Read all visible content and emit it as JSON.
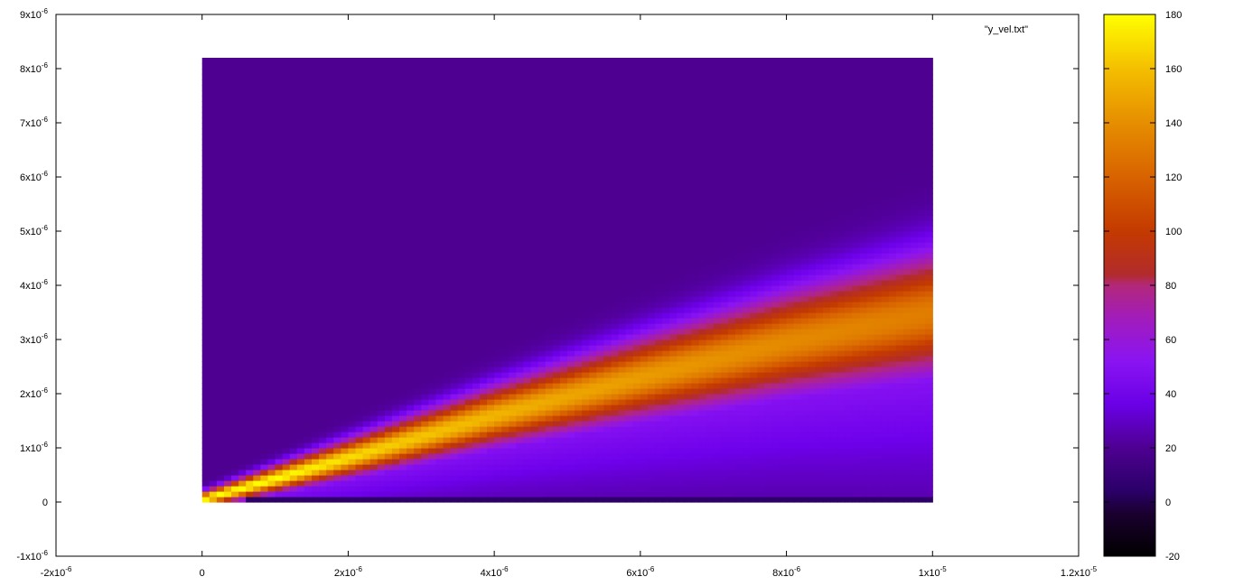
{
  "chart_data": {
    "type": "heatmap",
    "title": "",
    "xlabel": "",
    "ylabel": "",
    "xlim": [
      -2e-06,
      1.2e-05
    ],
    "ylim": [
      -1e-06,
      9e-06
    ],
    "data_extent": {
      "x": [
        0,
        1e-05
      ],
      "y": [
        0,
        8.2e-06
      ]
    },
    "x_ticks": [
      {
        "value": -2e-06,
        "mant": "-2x10",
        "exp": "-6"
      },
      {
        "value": 0,
        "mant": "0",
        "exp": ""
      },
      {
        "value": 2e-06,
        "mant": "2x10",
        "exp": "-6"
      },
      {
        "value": 4e-06,
        "mant": "4x10",
        "exp": "-6"
      },
      {
        "value": 6e-06,
        "mant": "6x10",
        "exp": "-6"
      },
      {
        "value": 8e-06,
        "mant": "8x10",
        "exp": "-6"
      },
      {
        "value": 1e-05,
        "mant": "1x10",
        "exp": "-5"
      },
      {
        "value": 1.2e-05,
        "mant": "1.2x10",
        "exp": "-5"
      }
    ],
    "y_ticks": [
      {
        "value": -1e-06,
        "mant": "-1x10",
        "exp": "-6"
      },
      {
        "value": 0,
        "mant": "0",
        "exp": ""
      },
      {
        "value": 1e-06,
        "mant": "1x10",
        "exp": "-6"
      },
      {
        "value": 2e-06,
        "mant": "2x10",
        "exp": "-6"
      },
      {
        "value": 3e-06,
        "mant": "3x10",
        "exp": "-6"
      },
      {
        "value": 4e-06,
        "mant": "4x10",
        "exp": "-6"
      },
      {
        "value": 5e-06,
        "mant": "5x10",
        "exp": "-6"
      },
      {
        "value": 6e-06,
        "mant": "6x10",
        "exp": "-6"
      },
      {
        "value": 7e-06,
        "mant": "7x10",
        "exp": "-6"
      },
      {
        "value": 8e-06,
        "mant": "8x10",
        "exp": "-6"
      },
      {
        "value": 9e-06,
        "mant": "9x10",
        "exp": "-6"
      }
    ],
    "series": [
      {
        "name": "\"y_vel.txt\""
      }
    ],
    "colorbar": {
      "range": [
        -20,
        180
      ],
      "ticks": [
        -20,
        0,
        20,
        40,
        60,
        80,
        100,
        120,
        140,
        160,
        180
      ],
      "palette": "gnuplot default (black-blue-violet-red-yellow)"
    },
    "jet": {
      "description": "wedge-shaped high-velocity region rising from origin",
      "center_line": [
        [
          0,
          5e-08
        ],
        [
          2e-06,
          8.2e-07
        ],
        [
          4e-06,
          1.6e-06
        ],
        [
          6e-06,
          2.3e-06
        ],
        [
          8e-06,
          2.95e-06
        ],
        [
          1e-05,
          3.5e-06
        ]
      ],
      "peak_value_profile": [
        [
          0,
          180
        ],
        [
          1e-06,
          180
        ],
        [
          2.5e-06,
          165
        ],
        [
          5e-06,
          150
        ],
        [
          7.5e-06,
          140
        ],
        [
          1e-05,
          132
        ]
      ]
    }
  }
}
